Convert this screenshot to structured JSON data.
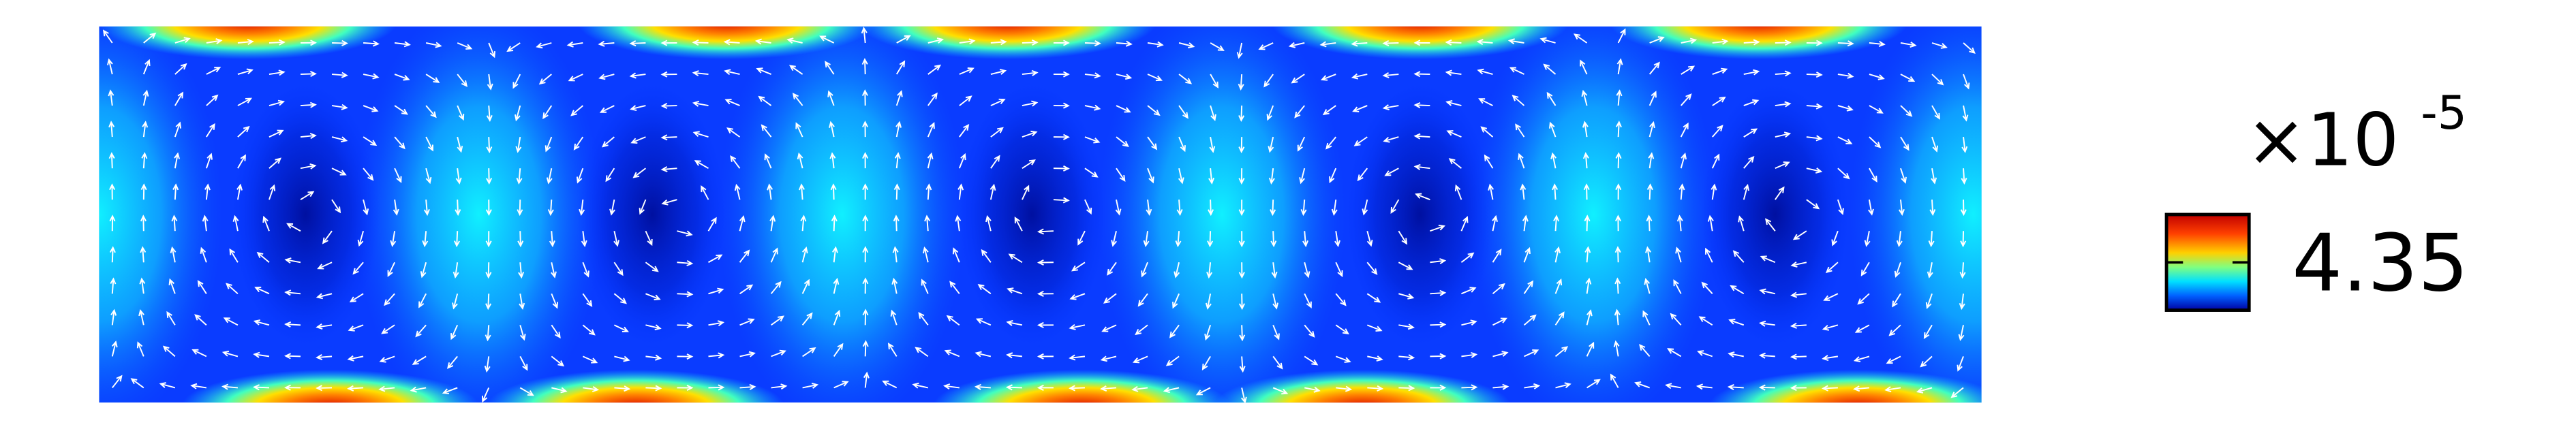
{
  "colorbar": {
    "multiplier": "×10",
    "exponent": "-5",
    "label": "4.35"
  }
}
